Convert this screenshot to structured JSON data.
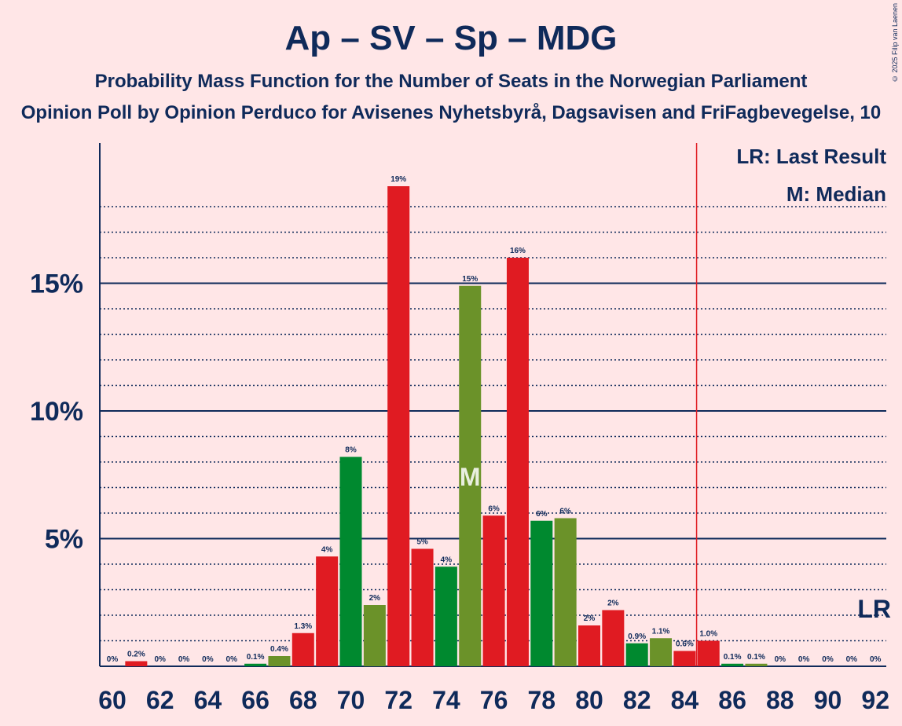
{
  "title": "Ap – SV – Sp – MDG",
  "subtitle": "Probability Mass Function for the Number of Seats in the Norwegian Parliament",
  "subtitle2": "Opinion Poll by Opinion Perduco for Avisenes Nyhetsbyrå, Dagsavisen and FriFagbevegelse, 10",
  "copyright": "© 2025 Filip van Laenen",
  "legend": {
    "last_result": "LR: Last Result",
    "median": "M: Median"
  },
  "colors": {
    "red": "#e01b22",
    "green": "#00892f",
    "olive": "#6b9229",
    "axis": "#0f2a5a",
    "background": "#ffe6e7"
  },
  "chart_data": {
    "type": "bar",
    "x": [
      60,
      61,
      62,
      63,
      64,
      65,
      66,
      67,
      68,
      69,
      70,
      71,
      72,
      73,
      74,
      75,
      76,
      77,
      78,
      79,
      80,
      81,
      82,
      83,
      84,
      85,
      86,
      87,
      88,
      89,
      90,
      91,
      92
    ],
    "values": [
      0,
      0.2,
      0,
      0,
      0,
      0,
      0.1,
      0.4,
      1.3,
      4.3,
      8.2,
      2.4,
      18.8,
      4.6,
      3.9,
      14.9,
      5.9,
      16.0,
      5.7,
      5.8,
      1.6,
      2.2,
      0.9,
      1.1,
      0.6,
      1.0,
      0.1,
      0.1,
      0,
      0,
      0,
      0,
      0
    ],
    "labels": [
      "0%",
      "0.2%",
      "0%",
      "0%",
      "0%",
      "0%",
      "0.1%",
      "0.4%",
      "1.3%",
      "4%",
      "8%",
      "2%",
      "19%",
      "5%",
      "4%",
      "15%",
      "6%",
      "16%",
      "6%",
      "6%",
      "2%",
      "2%",
      "0.9%",
      "1.1%",
      "0.6%",
      "1.0%",
      "0.1%",
      "0.1%",
      "0%",
      "0%",
      "0%",
      "0%",
      "0%"
    ],
    "bar_colors": [
      "red",
      "red",
      "red",
      "green",
      "olive",
      "red",
      "green",
      "olive",
      "red",
      "red",
      "green",
      "olive",
      "red",
      "red",
      "green",
      "olive",
      "red",
      "red",
      "green",
      "olive",
      "red",
      "red",
      "green",
      "olive",
      "red",
      "red",
      "green",
      "olive",
      "red",
      "red",
      "green",
      "olive",
      "red"
    ],
    "x_ticks": [
      "60",
      "62",
      "64",
      "66",
      "68",
      "70",
      "72",
      "74",
      "76",
      "78",
      "80",
      "82",
      "84",
      "86",
      "88",
      "90",
      "92"
    ],
    "y_ticks": [
      "5%",
      "10%",
      "15%"
    ],
    "ylim": [
      0,
      22.5
    ],
    "median_seat": 75,
    "median_label": "M",
    "last_result_seat": 84.5,
    "last_result_label": "LR"
  }
}
